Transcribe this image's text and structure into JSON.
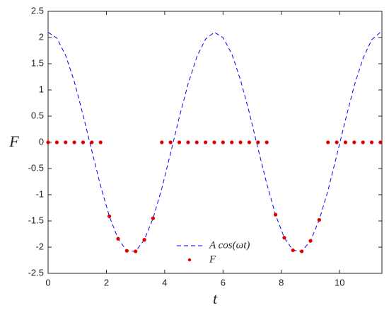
{
  "chart_data": {
    "type": "line",
    "xlabel": "t",
    "ylabel": "F",
    "xlim": [
      0,
      11.45
    ],
    "ylim": [
      -2.5,
      2.5
    ],
    "xticks": [
      0,
      2,
      4,
      6,
      8,
      10
    ],
    "yticks": [
      -2.5,
      -2,
      -1.5,
      -1,
      -0.5,
      0,
      0.5,
      1,
      1.5,
      2,
      2.5
    ],
    "x": [
      0,
      0.3,
      0.6,
      0.9,
      1.2,
      1.5,
      1.8,
      2.1,
      2.4,
      2.7,
      3.0,
      3.3,
      3.6,
      3.9,
      4.2,
      4.5,
      4.8,
      5.1,
      5.4,
      5.7,
      6.0,
      6.3,
      6.6,
      6.9,
      7.2,
      7.5,
      7.8,
      8.1,
      8.4,
      8.7,
      9.0,
      9.3,
      9.6,
      9.9,
      10.2,
      10.5,
      10.8,
      11.1,
      11.4
    ],
    "series": [
      {
        "name": "A cos(ωt)",
        "color": "#0000ff",
        "style": "dashed",
        "values": [
          2.1,
          1.99,
          1.66,
          1.16,
          0.52,
          -0.16,
          -0.83,
          -1.41,
          -1.84,
          -2.07,
          -2.08,
          -1.86,
          -1.45,
          -0.88,
          -0.21,
          0.48,
          1.11,
          1.63,
          1.97,
          2.1,
          2.0,
          1.69,
          1.19,
          0.57,
          -0.12,
          -0.79,
          -1.38,
          -1.82,
          -2.06,
          -2.08,
          -1.88,
          -1.48,
          -0.92,
          -0.25,
          0.43,
          1.08,
          1.6,
          1.96,
          2.1
        ]
      },
      {
        "name": "F",
        "color": "#e00000",
        "style": "dots",
        "values": [
          0,
          0,
          0,
          0,
          0,
          0,
          0,
          -1.41,
          -1.84,
          -2.07,
          -2.08,
          -1.86,
          -1.45,
          0,
          0,
          0,
          0,
          0,
          0,
          0,
          0,
          0,
          0,
          0,
          0,
          0,
          -1.38,
          -1.82,
          -2.06,
          -2.08,
          -1.88,
          -1.48,
          0,
          0,
          0,
          0,
          0,
          0,
          0
        ]
      }
    ]
  }
}
